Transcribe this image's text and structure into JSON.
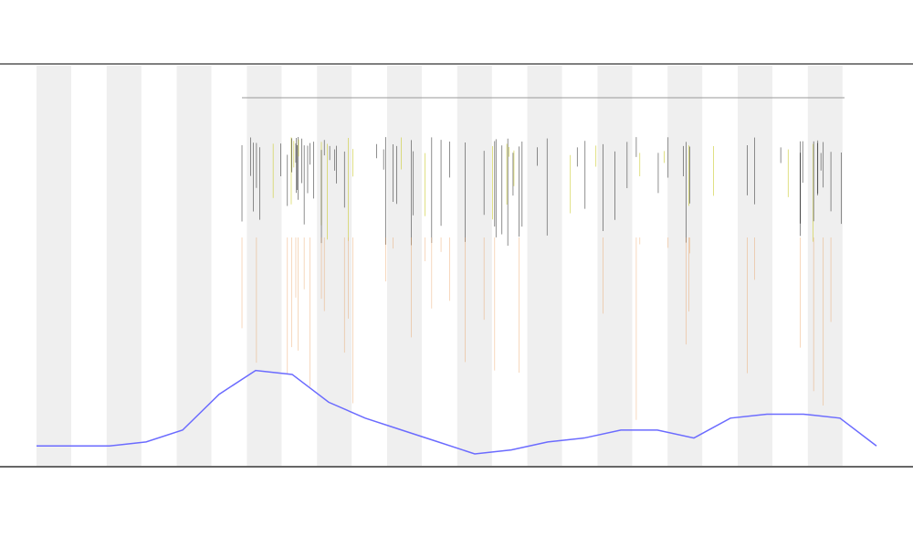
{
  "chart_data": {
    "type": "line",
    "x": [
      0,
      1,
      2,
      3,
      4,
      5,
      6,
      7,
      8,
      9,
      10,
      11,
      12,
      13,
      14,
      15,
      16,
      17,
      18,
      19,
      20,
      21,
      22,
      23
    ],
    "xlim": [
      0,
      23
    ],
    "ylim": [
      0,
      100
    ],
    "series": [
      {
        "color": "#6b6bff",
        "values": [
          5,
          5,
          5,
          6,
          9,
          18,
          24,
          23,
          16,
          12,
          9,
          6,
          3,
          4,
          6,
          7,
          9,
          9,
          7,
          12,
          13,
          13,
          12,
          5
        ]
      }
    ]
  }
}
